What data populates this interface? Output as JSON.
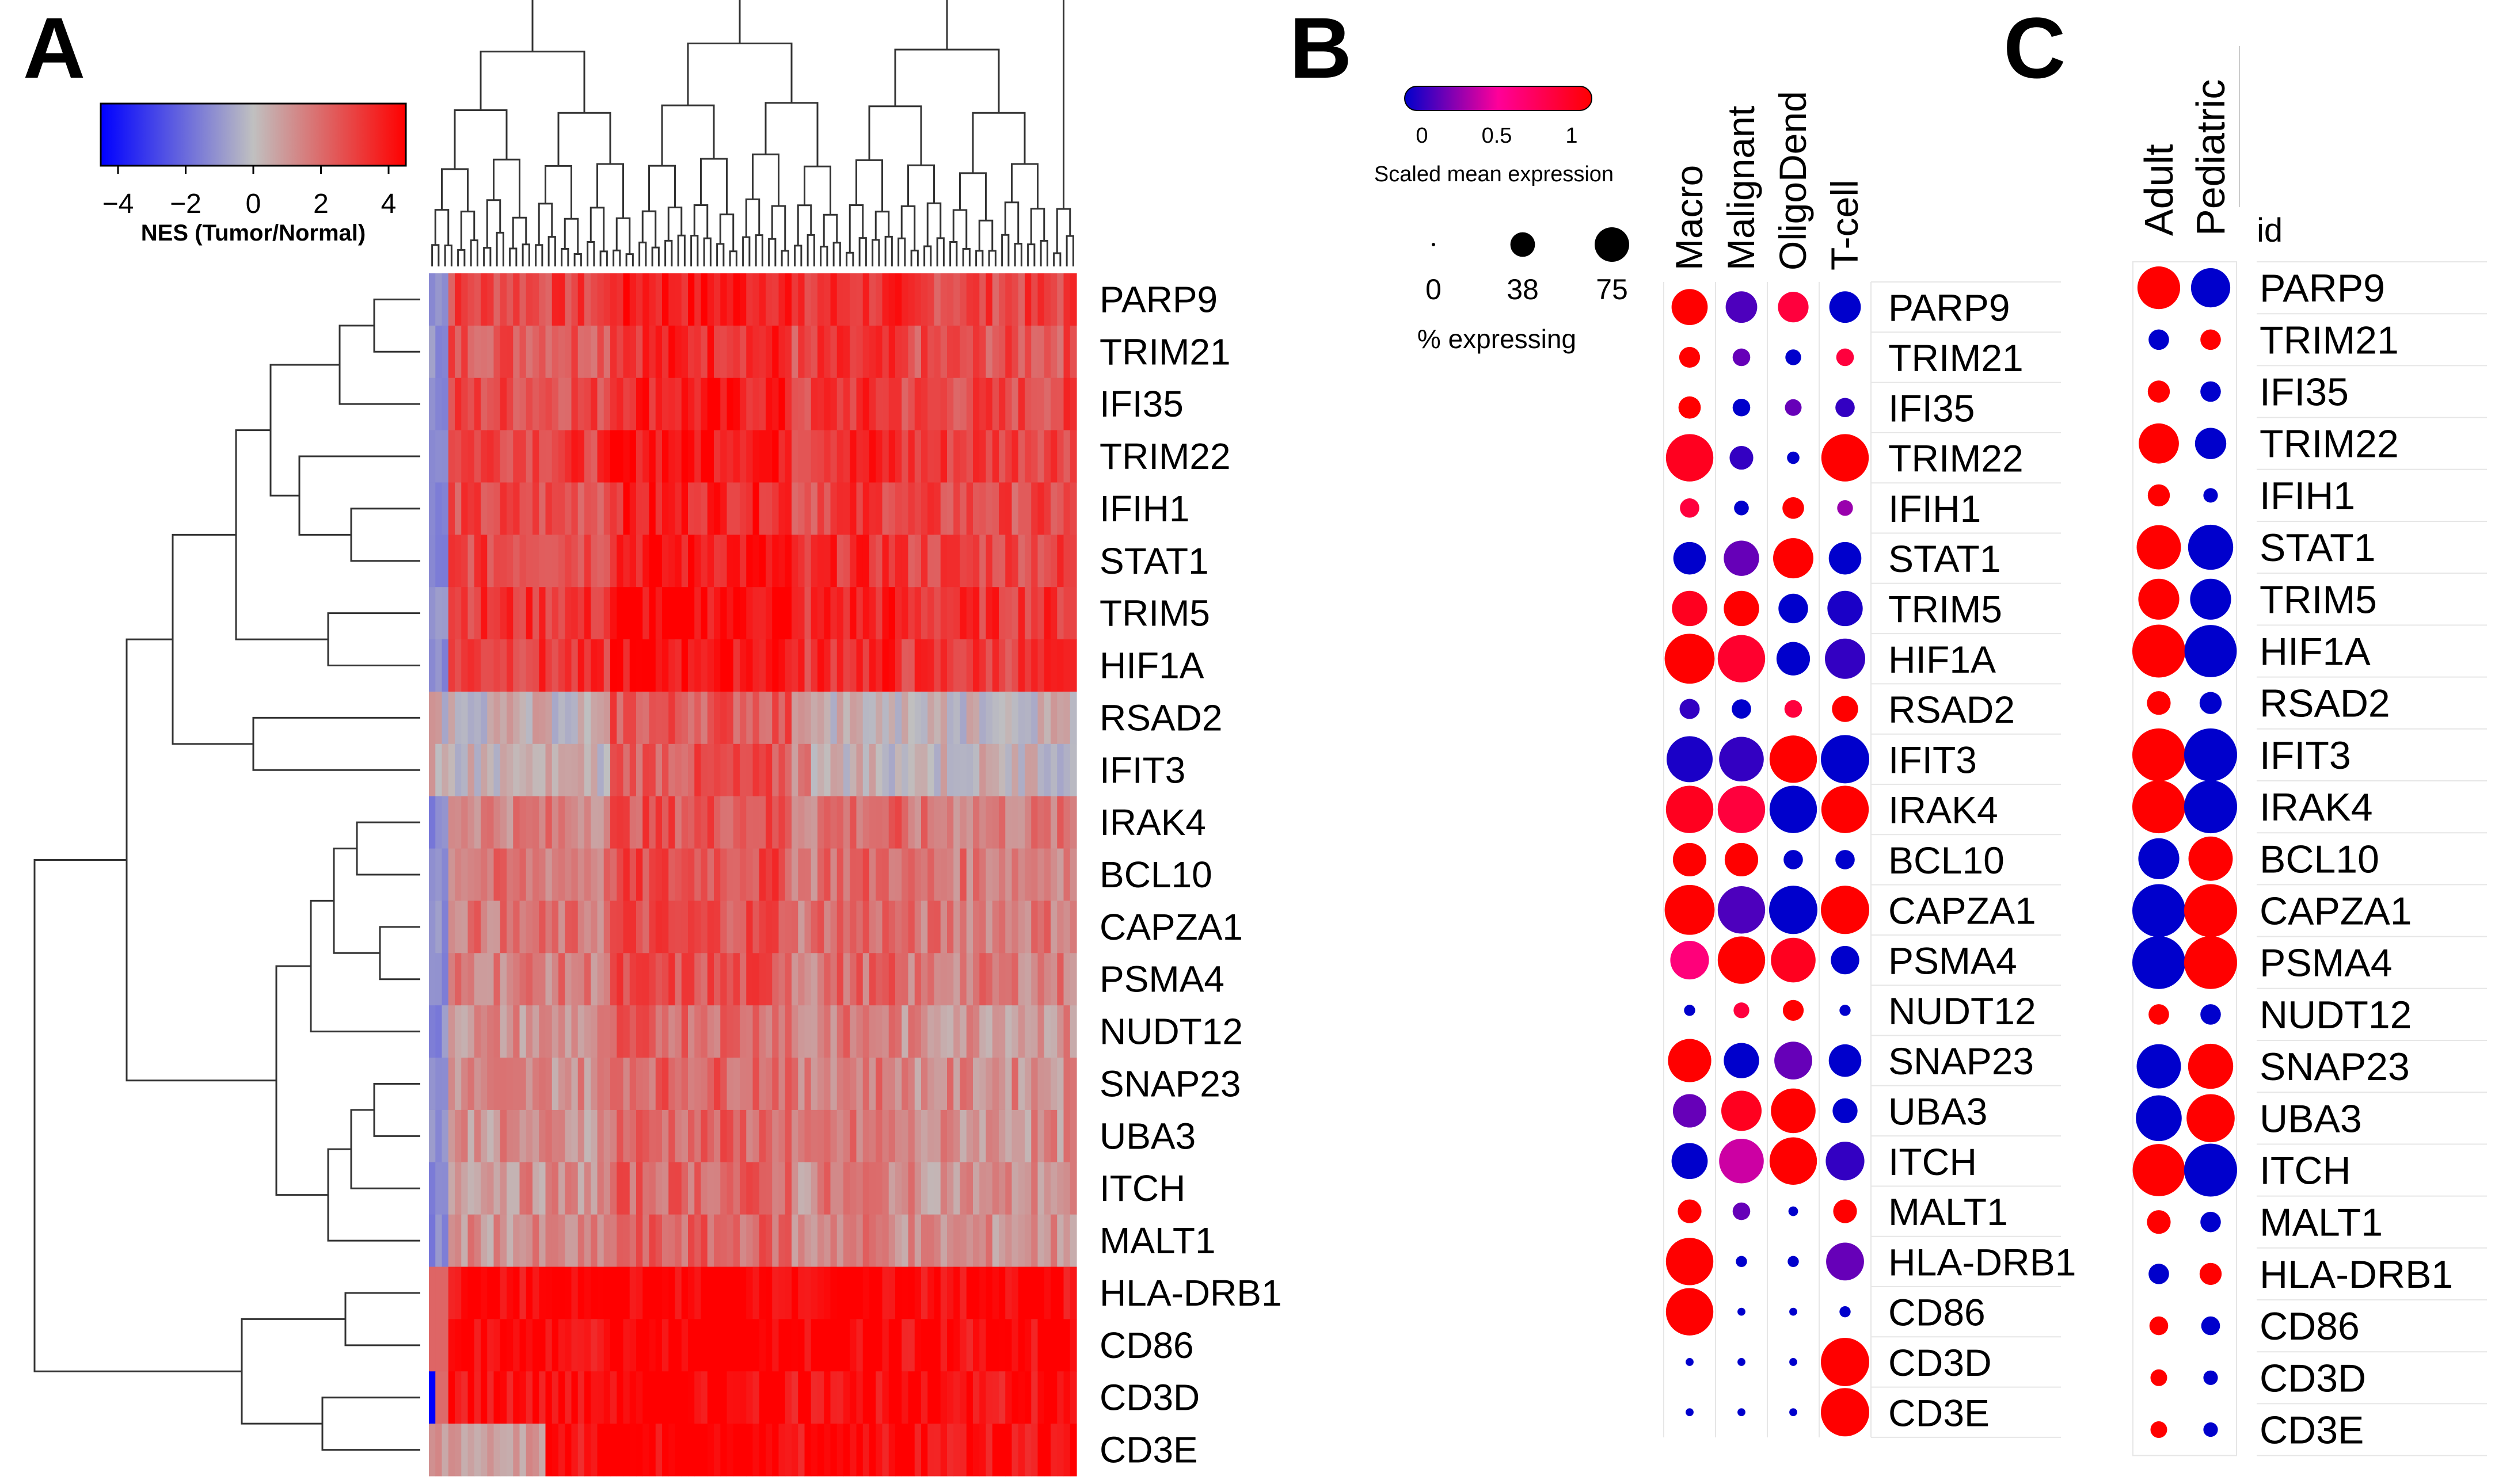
{
  "panel_labels": [
    "A",
    "B",
    "C"
  ],
  "genes": [
    "PARP9",
    "TRIM21",
    "IFI35",
    "TRIM22",
    "IFIH1",
    "STAT1",
    "TRIM5",
    "HIF1A",
    "RSAD2",
    "IFIT3",
    "IRAK4",
    "BCL10",
    "CAPZA1",
    "PSMA4",
    "NUDT12",
    "SNAP23",
    "UBA3",
    "ITCH",
    "MALT1",
    "HLA-DRB1",
    "CD86",
    "CD3D",
    "CD3E"
  ],
  "colors": {
    "low": "#0000ff",
    "mid": "#c0c0c0",
    "high": "#ff0000",
    "dot_low": "#0000cc",
    "dot_mid": "#ff0099",
    "dot_high": "#ff0000"
  },
  "chart_data": [
    {
      "type": "heatmap",
      "panel": "A",
      "legend_title": "NES (Tumor/Normal)",
      "legend_ticks": [
        "−4",
        "−2",
        "0",
        "2",
        "4"
      ],
      "value_range": [
        -4,
        4
      ],
      "rows": [
        "PARP9",
        "TRIM21",
        "IFI35",
        "TRIM22",
        "IFIH1",
        "STAT1",
        "TRIM5",
        "HIF1A",
        "RSAD2",
        "IFIT3",
        "IRAK4",
        "BCL10",
        "CAPZA1",
        "PSMA4",
        "NUDT12",
        "SNAP23",
        "UBA3",
        "ITCH",
        "MALT1",
        "HLA-DRB1",
        "CD86",
        "CD3D",
        "CD3E"
      ],
      "column_count": 100,
      "row_mean_nes": [
        2.6,
        2.3,
        2.5,
        2.8,
        2.4,
        2.6,
        2.9,
        2.8,
        1.3,
        1.3,
        1.4,
        1.5,
        1.5,
        1.4,
        1.0,
        1.1,
        1.0,
        1.0,
        1.0,
        3.9,
        3.9,
        3.8,
        3.8
      ],
      "row_dendrogram": "present",
      "column_dendrogram": "present"
    },
    {
      "type": "scatter",
      "panel": "B",
      "columns": [
        "Macro",
        "Malignant",
        "OligoDend",
        "T-cell"
      ],
      "color_legend_title": "Scaled mean expression",
      "color_ticks": [
        "0",
        "0.5",
        "1"
      ],
      "size_legend_title": "% expressing",
      "size_ticks": [
        "0",
        "38",
        "75"
      ],
      "scaled_mean_expression": [
        [
          1.0,
          0.15,
          0.8,
          0.0
        ],
        [
          1.0,
          0.2,
          0.0,
          0.8
        ],
        [
          1.0,
          0.0,
          0.2,
          0.1
        ],
        [
          0.9,
          0.1,
          0.0,
          1.0
        ],
        [
          0.8,
          0.0,
          1.0,
          0.3
        ],
        [
          0.0,
          0.2,
          1.0,
          0.0
        ],
        [
          0.9,
          1.0,
          0.0,
          0.05
        ],
        [
          1.0,
          0.85,
          0.0,
          0.1
        ],
        [
          0.1,
          0.0,
          0.8,
          1.0
        ],
        [
          0.05,
          0.1,
          1.0,
          0.0
        ],
        [
          0.9,
          0.8,
          0.0,
          1.0
        ],
        [
          1.0,
          1.0,
          0.0,
          0.0
        ],
        [
          1.0,
          0.15,
          0.0,
          1.0
        ],
        [
          0.6,
          1.0,
          0.9,
          0.0
        ],
        [
          0.0,
          0.8,
          1.0,
          0.0
        ],
        [
          1.0,
          0.0,
          0.2,
          0.0
        ],
        [
          0.2,
          0.9,
          1.0,
          0.0
        ],
        [
          0.0,
          0.4,
          1.0,
          0.1
        ],
        [
          1.0,
          0.2,
          0.0,
          1.0
        ],
        [
          1.0,
          0.0,
          0.0,
          0.2
        ],
        [
          1.0,
          0.0,
          0.0,
          0.0
        ],
        [
          0.0,
          0.0,
          0.0,
          1.0
        ],
        [
          0.0,
          0.0,
          0.0,
          1.0
        ]
      ],
      "pct_expressing": [
        [
          42,
          32,
          30,
          32
        ],
        [
          14,
          10,
          8,
          10
        ],
        [
          16,
          10,
          9,
          12
        ],
        [
          72,
          18,
          5,
          72
        ],
        [
          12,
          7,
          15,
          8
        ],
        [
          34,
          40,
          52,
          34
        ],
        [
          40,
          40,
          28,
          40
        ],
        [
          80,
          72,
          36,
          52
        ],
        [
          13,
          12,
          10,
          22
        ],
        [
          68,
          64,
          72,
          75
        ],
        [
          72,
          72,
          72,
          72
        ],
        [
          36,
          36,
          12,
          12
        ],
        [
          80,
          72,
          75,
          75
        ],
        [
          48,
          72,
          64,
          26
        ],
        [
          4,
          8,
          14,
          4
        ],
        [
          60,
          40,
          46,
          34
        ],
        [
          36,
          52,
          64,
          20
        ],
        [
          42,
          64,
          72,
          48
        ],
        [
          18,
          10,
          3,
          18
        ],
        [
          72,
          4,
          4,
          46
        ],
        [
          72,
          2,
          2,
          4
        ],
        [
          2,
          2,
          2,
          75
        ],
        [
          2,
          2,
          2,
          75
        ]
      ]
    },
    {
      "type": "scatter",
      "panel": "C",
      "columns": [
        "Adult",
        "Pediatric"
      ],
      "row_header": "id",
      "group": [
        "high",
        "low"
      ],
      "pct_expressing": [
        [
          52,
          44
        ],
        [
          12,
          12
        ],
        [
          14,
          12
        ],
        [
          46,
          28
        ],
        [
          14,
          6
        ],
        [
          56,
          58
        ],
        [
          48,
          48
        ],
        [
          80,
          78
        ],
        [
          16,
          14
        ],
        [
          80,
          80
        ],
        [
          80,
          80
        ],
        [
          48,
          56
        ],
        [
          80,
          80
        ],
        [
          80,
          80
        ],
        [
          12,
          12
        ],
        [
          56,
          58
        ],
        [
          60,
          66
        ],
        [
          78,
          80
        ],
        [
          16,
          12
        ],
        [
          12,
          14
        ],
        [
          10,
          10
        ],
        [
          8,
          6
        ],
        [
          8,
          6
        ]
      ],
      "adult_high": [
        true,
        false,
        true,
        true,
        true,
        true,
        true,
        true,
        true,
        true,
        true,
        false,
        false,
        false,
        true,
        false,
        false,
        true,
        true,
        false,
        true,
        true,
        true
      ],
      "adult_color_bin": [
        1,
        0,
        1,
        1,
        1,
        1,
        1,
        1,
        1,
        1,
        1,
        0,
        0,
        0,
        1,
        0,
        0,
        1,
        1,
        0,
        1,
        1,
        1
      ],
      "pediatric_color_bin": [
        0,
        1,
        0,
        0,
        0,
        0,
        0,
        0,
        0,
        0,
        0,
        1,
        1,
        1,
        0,
        1,
        1,
        0,
        0,
        1,
        0,
        0,
        0
      ]
    }
  ]
}
